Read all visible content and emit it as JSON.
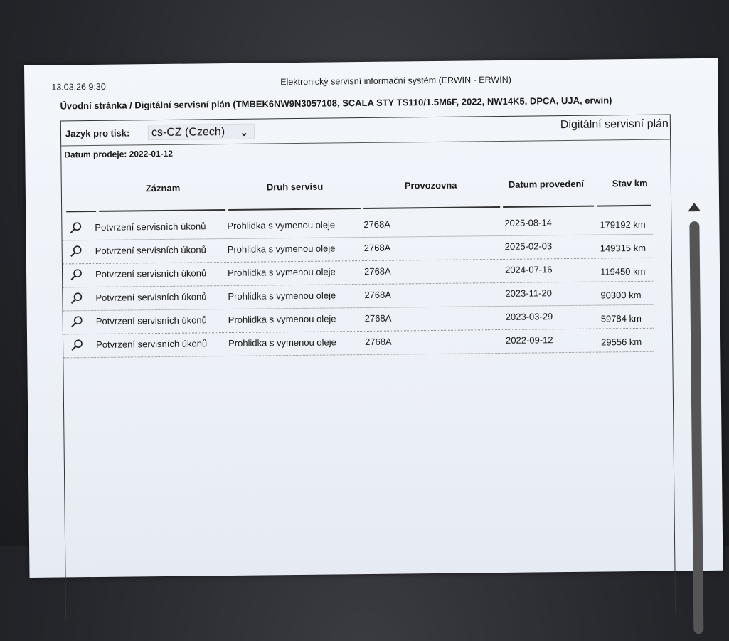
{
  "header": {
    "timestamp": "13.03.26 9:30",
    "system_title": "Elektronický servisní informační systém (ERWIN - ERWIN)"
  },
  "breadcrumb": "Úvodní stránka / Digitální servisní plán (TMBEK6NW9N3057108, SCALA STY TS110/1.5M6F, 2022, NW14K5, DPCA, UJA, erwin)",
  "language": {
    "label": "Jazyk pro tisk:",
    "selected": "cs-CZ (Czech)"
  },
  "panel_title": "Digitální servisní plán",
  "sale_date": "Datum prodeje: 2022-01-12",
  "table": {
    "columns": [
      "Záznam",
      "Druh servisu",
      "Provozovna",
      "Datum provedení",
      "Stav km"
    ],
    "rows": [
      {
        "record": "Potvrzení servisních úkonů",
        "type": "Prohlidka s vymenou oleje",
        "workshop": "2768A",
        "date": "2025-08-14",
        "km": "179192 km"
      },
      {
        "record": "Potvrzení servisních úkonů",
        "type": "Prohlidka s vymenou oleje",
        "workshop": "2768A",
        "date": "2025-02-03",
        "km": "149315 km"
      },
      {
        "record": "Potvrzení servisních úkonů",
        "type": "Prohlidka s vymenou oleje",
        "workshop": "2768A",
        "date": "2024-07-16",
        "km": "119450 km"
      },
      {
        "record": "Potvrzení servisních úkonů",
        "type": "Prohlidka s vymenou oleje",
        "workshop": "2768A",
        "date": "2023-11-20",
        "km": "90300 km"
      },
      {
        "record": "Potvrzení servisních úkonů",
        "type": "Prohlidka s vymenou oleje",
        "workshop": "2768A",
        "date": "2023-03-29",
        "km": "59784 km"
      },
      {
        "record": "Potvrzení servisních úkonů",
        "type": "Prohlidka s vymenou oleje",
        "workshop": "2768A",
        "date": "2022-09-12",
        "km": "29556 km"
      }
    ]
  },
  "icons": {
    "row_action": "magnifier-icon",
    "select": "chevron-down-icon",
    "scroll_up": "triangle-up-icon"
  }
}
